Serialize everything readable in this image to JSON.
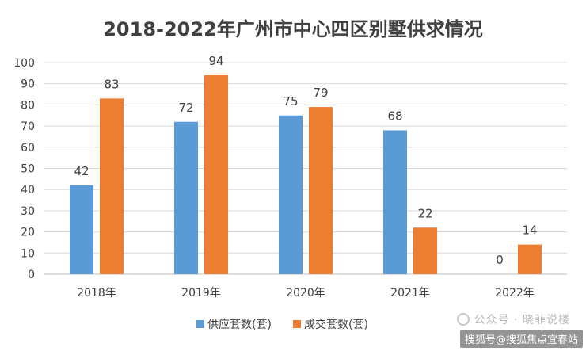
{
  "chart_data": {
    "type": "bar",
    "title": "2018-2022年广州市中心四区别墅供求情况",
    "categories": [
      "2018年",
      "2019年",
      "2020年",
      "2021年",
      "2022年"
    ],
    "series": [
      {
        "name": "供应套数(套)",
        "values": [
          42,
          72,
          75,
          68,
          0
        ],
        "color": "#5B9BD5"
      },
      {
        "name": "成交套数(套)",
        "values": [
          83,
          94,
          79,
          22,
          14
        ],
        "color": "#ED7D31"
      }
    ],
    "ylim": [
      0,
      100
    ],
    "yticks": [
      0,
      10,
      20,
      30,
      40,
      50,
      60,
      70,
      80,
      90,
      100
    ],
    "grid": true,
    "legend_position": "bottom",
    "data_labels": true
  },
  "watermark": {
    "text": "公众号 · 晓菲说楼",
    "icon": "wechat-icon"
  },
  "caption": "搜狐号@搜狐焦点宜春站"
}
